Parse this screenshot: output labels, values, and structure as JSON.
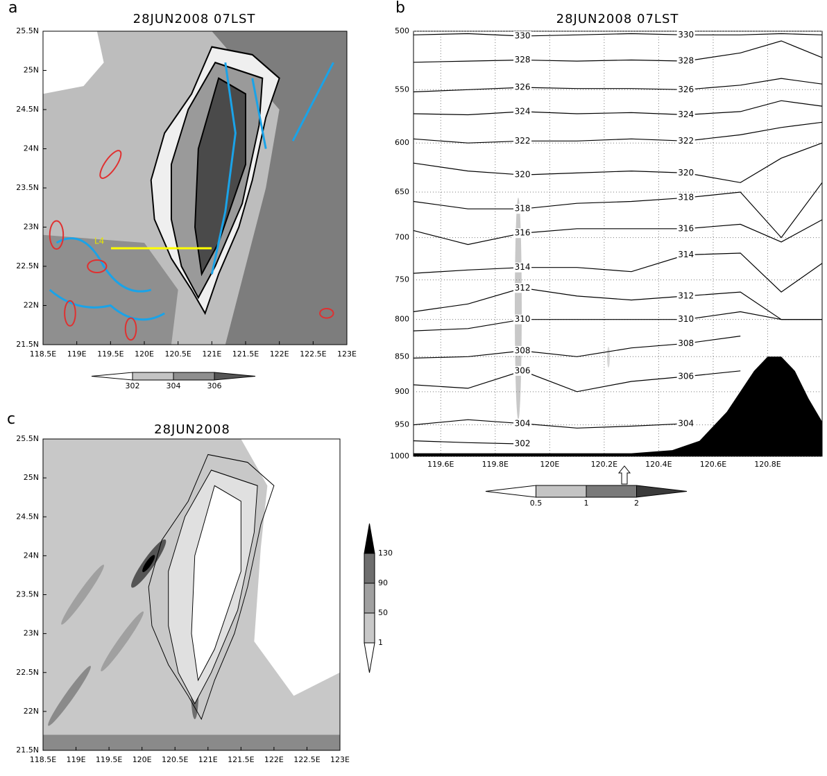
{
  "chart_data": [
    {
      "type": "map",
      "panel": "a",
      "title": "28JUN2008  07LST",
      "xlim": [
        118.5,
        123
      ],
      "ylim": [
        21.5,
        25.5
      ],
      "xticks": [
        {
          "value": 118.5,
          "label": "118.5E"
        },
        {
          "value": 119,
          "label": "119E"
        },
        {
          "value": 119.5,
          "label": "119.5E"
        },
        {
          "value": 120,
          "label": "120E"
        },
        {
          "value": 120.5,
          "label": "120.5E"
        },
        {
          "value": 121,
          "label": "121E"
        },
        {
          "value": 121.5,
          "label": "121.5E"
        },
        {
          "value": 122,
          "label": "122E"
        },
        {
          "value": 122.5,
          "label": "122.5E"
        },
        {
          "value": 123,
          "label": "123E"
        }
      ],
      "yticks": [
        {
          "value": 21.5,
          "label": "21.5N"
        },
        {
          "value": 22,
          "label": "22N"
        },
        {
          "value": 22.5,
          "label": "22.5N"
        },
        {
          "value": 23,
          "label": "23N"
        },
        {
          "value": 23.5,
          "label": "23.5N"
        },
        {
          "value": 24,
          "label": "24N"
        },
        {
          "value": 24.5,
          "label": "24.5N"
        },
        {
          "value": 25,
          "label": "25N"
        },
        {
          "value": 25.5,
          "label": "25.5N"
        }
      ],
      "annotation": "L4",
      "colorbar": {
        "orientation": "horizontal",
        "levels": [
          302,
          304,
          306
        ],
        "colors": [
          "#ffffff",
          "#c4c4c4",
          "#8e8e8e",
          "#555555"
        ]
      }
    },
    {
      "type": "cross-section",
      "panel": "b",
      "title": "28JUN2008  07LST",
      "log_scale": true,
      "grid": true,
      "xlim": [
        119.5,
        121
      ],
      "ylim": [
        1000,
        500
      ],
      "xticks": [
        {
          "value": 119.6,
          "label": "119.6E"
        },
        {
          "value": 119.8,
          "label": "119.8E"
        },
        {
          "value": 120,
          "label": "120E"
        },
        {
          "value": 120.2,
          "label": "120.2E"
        },
        {
          "value": 120.4,
          "label": "120.4E"
        },
        {
          "value": 120.6,
          "label": "120.6E"
        },
        {
          "value": 120.8,
          "label": "120.8E"
        }
      ],
      "yticks": [
        500,
        550,
        600,
        650,
        700,
        750,
        800,
        850,
        900,
        950,
        1000
      ],
      "x": [
        119.5,
        119.7,
        119.9,
        120.1,
        120.3,
        120.5,
        120.7,
        120.85,
        121.0
      ],
      "contours": [
        {
          "level": 330,
          "values": [
            503,
            502,
            504,
            503,
            502,
            503,
            503,
            502,
            503
          ]
        },
        {
          "level": 328,
          "values": [
            526,
            525,
            524,
            525,
            524,
            525,
            518,
            508,
            522
          ]
        },
        {
          "level": 326,
          "values": [
            552,
            550,
            548,
            549,
            549,
            550,
            546,
            540,
            545
          ]
        },
        {
          "level": 324,
          "values": [
            572,
            573,
            570,
            572,
            571,
            573,
            570,
            560,
            565
          ]
        },
        {
          "level": 322,
          "values": [
            596,
            600,
            598,
            598,
            596,
            598,
            592,
            585,
            580
          ]
        },
        {
          "level": 320,
          "values": [
            620,
            628,
            632,
            630,
            628,
            630,
            640,
            615,
            600
          ]
        },
        {
          "level": 318,
          "values": [
            660,
            668,
            668,
            662,
            660,
            656,
            650,
            700,
            640
          ]
        },
        {
          "level": 316,
          "values": [
            692,
            708,
            695,
            690,
            690,
            690,
            685,
            705,
            680
          ]
        },
        {
          "level": 314,
          "values": [
            742,
            738,
            735,
            735,
            740,
            720,
            718,
            765,
            730
          ]
        },
        {
          "level": 312,
          "values": [
            790,
            780,
            760,
            770,
            775,
            770,
            765,
            800,
            800
          ]
        },
        {
          "level": 310,
          "values": [
            815,
            812,
            800,
            800,
            800,
            800,
            790,
            800,
            800
          ]
        },
        {
          "level": 308,
          "values": [
            852,
            850,
            842,
            850,
            838,
            832,
            822,
            null,
            null
          ]
        },
        {
          "level": 306,
          "values": [
            890,
            895,
            870,
            900,
            885,
            878,
            870,
            null,
            null
          ]
        },
        {
          "level": 304,
          "values": [
            950,
            942,
            948,
            955,
            952,
            948,
            null,
            null,
            null
          ]
        },
        {
          "level": 302,
          "values": [
            975,
            978,
            980,
            null,
            null,
            null,
            null,
            null,
            null
          ]
        }
      ],
      "terrain": {
        "x": [
          119.5,
          120.3,
          120.45,
          120.55,
          120.65,
          120.75,
          120.8,
          120.85,
          120.9,
          120.95,
          121.0
        ],
        "values": [
          995,
          995,
          990,
          975,
          930,
          870,
          850,
          850,
          870,
          910,
          945
        ],
        "color": "#000000"
      },
      "colorbar": {
        "orientation": "horizontal",
        "levels": [
          0.5,
          1,
          2
        ],
        "colors": [
          "#ffffff",
          "#c4c4c4",
          "#7a7a7a",
          "#3a3a3a"
        ]
      }
    },
    {
      "type": "map",
      "panel": "c",
      "title": "28JUN2008",
      "xlim": [
        118.5,
        123
      ],
      "ylim": [
        21.5,
        25.5
      ],
      "xticks": [
        {
          "value": 118.5,
          "label": "118.5E"
        },
        {
          "value": 119,
          "label": "119E"
        },
        {
          "value": 119.5,
          "label": "119.5E"
        },
        {
          "value": 120,
          "label": "120E"
        },
        {
          "value": 120.5,
          "label": "120.5E"
        },
        {
          "value": 121,
          "label": "121E"
        },
        {
          "value": 121.5,
          "label": "121.5E"
        },
        {
          "value": 122,
          "label": "122E"
        },
        {
          "value": 122.5,
          "label": "122.5E"
        },
        {
          "value": 123,
          "label": "123E"
        }
      ],
      "yticks": [
        {
          "value": 21.5,
          "label": "21.5N"
        },
        {
          "value": 22,
          "label": "22N"
        },
        {
          "value": 22.5,
          "label": "22.5N"
        },
        {
          "value": 23,
          "label": "23N"
        },
        {
          "value": 23.5,
          "label": "23.5N"
        },
        {
          "value": 24,
          "label": "24N"
        },
        {
          "value": 24.5,
          "label": "24.5N"
        },
        {
          "value": 25,
          "label": "25N"
        },
        {
          "value": 25.5,
          "label": "25.5N"
        }
      ],
      "colorbar": {
        "orientation": "vertical",
        "levels": [
          1,
          50,
          90,
          130
        ],
        "colors": [
          "#ffffff",
          "#c8c8c8",
          "#a0a0a0",
          "#6e6e6e",
          "#000000"
        ]
      }
    }
  ]
}
